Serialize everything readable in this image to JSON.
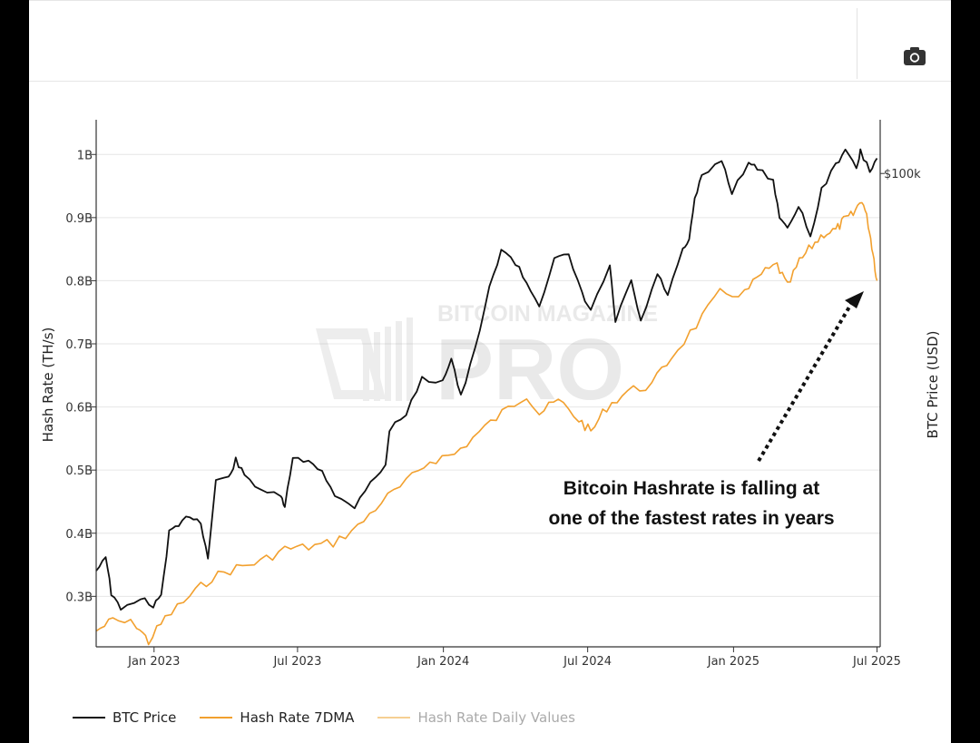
{
  "toolbar": {
    "camera_icon": "camera-icon"
  },
  "watermark": {
    "line1": "BITCOIN MAGAZINE",
    "line2": "PRO"
  },
  "annotation": {
    "line1": "Bitcoin Hashrate is falling at",
    "line2": "one of the fastest rates in years"
  },
  "legend": {
    "btc_price": "BTC Price",
    "hash_rate_7dma": "Hash Rate 7DMA",
    "hash_rate_daily": "Hash Rate Daily Values"
  },
  "colors": {
    "btc_price": "#111111",
    "hash_rate_7dma": "#f2a02e",
    "hash_rate_daily": "#f6cf93",
    "grid": "#e6e6e6",
    "axis": "#333333"
  },
  "chart_data": {
    "type": "line",
    "xlabel": "",
    "x_ticks": [
      "Jan 2023",
      "Jul 2023",
      "Jan 2024",
      "Jul 2024",
      "Jan 2025",
      "Jul 2025"
    ],
    "x_tick_dates": [
      "2023-01-01",
      "2023-07-01",
      "2024-01-01",
      "2024-07-01",
      "2025-01-01",
      "2025-07-01"
    ],
    "x_range": [
      "2022-10-20",
      "2025-07-05"
    ],
    "y_left": {
      "label": "Hash Rate (TH/s)",
      "ticks": [
        "0.3B",
        "0.4B",
        "0.5B",
        "0.6B",
        "0.7B",
        "0.8B",
        "0.9B",
        "1B"
      ],
      "tick_values": [
        300000000,
        400000000,
        500000000,
        600000000,
        700000000,
        800000000,
        900000000,
        1000000000
      ],
      "range": [
        220000000,
        1055000000
      ]
    },
    "y_right": {
      "label": "BTC Price (USD)",
      "ticks": [
        "$100k"
      ],
      "tick_values": [
        100000
      ],
      "scale": "log",
      "range": [
        14000,
        125000
      ]
    },
    "grid": true,
    "legend_position": "bottom-left",
    "series": [
      {
        "name": "BTC Price",
        "axis": "right",
        "points": [
          [
            "2022-10-20",
            19200
          ],
          [
            "2022-11-01",
            20500
          ],
          [
            "2022-11-08",
            17500
          ],
          [
            "2022-11-20",
            16300
          ],
          [
            "2022-12-15",
            17200
          ],
          [
            "2022-12-31",
            16550
          ],
          [
            "2023-01-10",
            17300
          ],
          [
            "2023-01-20",
            22500
          ],
          [
            "2023-02-01",
            23100
          ],
          [
            "2023-02-15",
            24200
          ],
          [
            "2023-03-01",
            23500
          ],
          [
            "2023-03-10",
            20200
          ],
          [
            "2023-03-20",
            28000
          ],
          [
            "2023-04-05",
            28200
          ],
          [
            "2023-04-14",
            30400
          ],
          [
            "2023-04-25",
            28500
          ],
          [
            "2023-05-15",
            27000
          ],
          [
            "2023-06-10",
            26000
          ],
          [
            "2023-06-15",
            25100
          ],
          [
            "2023-06-25",
            30500
          ],
          [
            "2023-07-15",
            30300
          ],
          [
            "2023-08-01",
            29200
          ],
          [
            "2023-08-17",
            26100
          ],
          [
            "2023-09-11",
            25100
          ],
          [
            "2023-10-01",
            27900
          ],
          [
            "2023-10-20",
            29600
          ],
          [
            "2023-10-25",
            34500
          ],
          [
            "2023-11-15",
            37000
          ],
          [
            "2023-12-05",
            42500
          ],
          [
            "2023-12-31",
            42300
          ],
          [
            "2024-01-11",
            46500
          ],
          [
            "2024-01-23",
            39500
          ],
          [
            "2024-02-10",
            48000
          ],
          [
            "2024-02-28",
            62000
          ],
          [
            "2024-03-14",
            73000
          ],
          [
            "2024-04-01",
            69000
          ],
          [
            "2024-04-15",
            63500
          ],
          [
            "2024-05-01",
            58000
          ],
          [
            "2024-05-20",
            70000
          ],
          [
            "2024-06-07",
            71000
          ],
          [
            "2024-06-24",
            60500
          ],
          [
            "2024-07-05",
            56500
          ],
          [
            "2024-07-29",
            68000
          ],
          [
            "2024-08-05",
            54000
          ],
          [
            "2024-08-25",
            64000
          ],
          [
            "2024-09-06",
            53900
          ],
          [
            "2024-09-27",
            65800
          ],
          [
            "2024-10-10",
            60500
          ],
          [
            "2024-10-29",
            72500
          ],
          [
            "2024-11-06",
            75500
          ],
          [
            "2024-11-13",
            90000
          ],
          [
            "2024-11-22",
            98500
          ],
          [
            "2024-12-17",
            106000
          ],
          [
            "2024-12-30",
            92500
          ],
          [
            "2025-01-20",
            105000
          ],
          [
            "2025-01-31",
            102000
          ],
          [
            "2025-02-20",
            97000
          ],
          [
            "2025-02-28",
            84000
          ],
          [
            "2025-03-10",
            79000
          ],
          [
            "2025-03-24",
            88000
          ],
          [
            "2025-04-08",
            76500
          ],
          [
            "2025-04-22",
            93500
          ],
          [
            "2025-05-10",
            103500
          ],
          [
            "2025-05-22",
            111000
          ],
          [
            "2025-06-05",
            101500
          ],
          [
            "2025-06-10",
            109500
          ],
          [
            "2025-06-22",
            101000
          ],
          [
            "2025-07-01",
            106500
          ]
        ]
      },
      {
        "name": "Hash Rate 7DMA",
        "axis": "left",
        "points": [
          [
            "2022-10-20",
            245000000
          ],
          [
            "2022-11-10",
            262000000
          ],
          [
            "2022-12-10",
            255000000
          ],
          [
            "2022-12-25",
            228000000
          ],
          [
            "2023-01-15",
            265000000
          ],
          [
            "2023-02-15",
            300000000
          ],
          [
            "2023-03-15",
            330000000
          ],
          [
            "2023-04-15",
            345000000
          ],
          [
            "2023-05-15",
            355000000
          ],
          [
            "2023-06-15",
            375000000
          ],
          [
            "2023-07-15",
            378000000
          ],
          [
            "2023-08-15",
            385000000
          ],
          [
            "2023-09-15",
            410000000
          ],
          [
            "2023-10-15",
            450000000
          ],
          [
            "2023-11-15",
            480000000
          ],
          [
            "2023-12-15",
            515000000
          ],
          [
            "2024-01-15",
            525000000
          ],
          [
            "2024-02-15",
            560000000
          ],
          [
            "2024-03-15",
            590000000
          ],
          [
            "2024-04-15",
            620000000
          ],
          [
            "2024-05-01",
            590000000
          ],
          [
            "2024-05-25",
            610000000
          ],
          [
            "2024-06-20",
            580000000
          ],
          [
            "2024-07-05",
            560000000
          ],
          [
            "2024-07-25",
            600000000
          ],
          [
            "2024-08-20",
            625000000
          ],
          [
            "2024-09-20",
            635000000
          ],
          [
            "2024-10-15",
            680000000
          ],
          [
            "2024-11-15",
            730000000
          ],
          [
            "2024-12-15",
            780000000
          ],
          [
            "2025-01-15",
            780000000
          ],
          [
            "2025-02-05",
            810000000
          ],
          [
            "2025-02-25",
            825000000
          ],
          [
            "2025-03-10",
            790000000
          ],
          [
            "2025-03-25",
            830000000
          ],
          [
            "2025-04-10",
            855000000
          ],
          [
            "2025-04-25",
            875000000
          ],
          [
            "2025-05-10",
            880000000
          ],
          [
            "2025-05-20",
            895000000
          ],
          [
            "2025-06-01",
            905000000
          ],
          [
            "2025-06-12",
            930000000
          ],
          [
            "2025-06-20",
            890000000
          ],
          [
            "2025-06-26",
            845000000
          ],
          [
            "2025-07-01",
            800000000
          ]
        ]
      },
      {
        "name": "Hash Rate Daily Values",
        "axis": "left",
        "points": []
      }
    ]
  }
}
